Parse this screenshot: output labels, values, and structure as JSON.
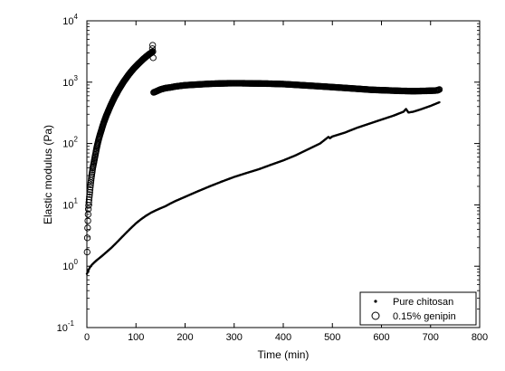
{
  "chart_data": {
    "type": "scatter",
    "xlabel": "Time (min)",
    "ylabel": "Elastic modulus (Pa)",
    "xlim": [
      0,
      800
    ],
    "ylim": [
      0.1,
      10000
    ],
    "yscale": "log",
    "grid": false,
    "legend_position": "bottom-right",
    "x_ticks": [
      {
        "value": 0,
        "label": "0"
      },
      {
        "value": 100,
        "label": "100"
      },
      {
        "value": 200,
        "label": "200"
      },
      {
        "value": 300,
        "label": "300"
      },
      {
        "value": 400,
        "label": "400"
      },
      {
        "value": 500,
        "label": "500"
      },
      {
        "value": 600,
        "label": "600"
      },
      {
        "value": 700,
        "label": "700"
      },
      {
        "value": 800,
        "label": "800"
      }
    ],
    "y_ticks": [
      {
        "value": 0.1,
        "base": "10",
        "exp": "-1"
      },
      {
        "value": 1,
        "base": "10",
        "exp": "0"
      },
      {
        "value": 10,
        "base": "10",
        "exp": "1"
      },
      {
        "value": 100,
        "base": "10",
        "exp": "2"
      },
      {
        "value": 1000,
        "base": "10",
        "exp": "3"
      },
      {
        "value": 10000,
        "base": "10",
        "exp": "4"
      }
    ],
    "series": [
      {
        "name": "Pure chitosan",
        "marker": "dot",
        "color": "#000000",
        "points": [
          [
            0,
            0.75
          ],
          [
            3,
            0.85
          ],
          [
            6,
            0.95
          ],
          [
            10,
            1.05
          ],
          [
            15,
            1.15
          ],
          [
            20,
            1.25
          ],
          [
            30,
            1.45
          ],
          [
            40,
            1.7
          ],
          [
            50,
            2.0
          ],
          [
            60,
            2.4
          ],
          [
            70,
            2.9
          ],
          [
            80,
            3.5
          ],
          [
            90,
            4.2
          ],
          [
            100,
            5.0
          ],
          [
            110,
            5.8
          ],
          [
            120,
            6.6
          ],
          [
            130,
            7.4
          ],
          [
            140,
            8.1
          ],
          [
            150,
            8.8
          ],
          [
            160,
            9.5
          ],
          [
            170,
            10.5
          ],
          [
            180,
            11.5
          ],
          [
            200,
            13.5
          ],
          [
            225,
            16.5
          ],
          [
            250,
            20
          ],
          [
            275,
            24
          ],
          [
            300,
            28.5
          ],
          [
            325,
            33
          ],
          [
            350,
            38
          ],
          [
            375,
            45
          ],
          [
            400,
            53
          ],
          [
            425,
            64
          ],
          [
            450,
            80
          ],
          [
            475,
            100
          ],
          [
            492,
            128
          ],
          [
            495,
            122
          ],
          [
            500,
            130
          ],
          [
            525,
            150
          ],
          [
            550,
            180
          ],
          [
            575,
            210
          ],
          [
            600,
            245
          ],
          [
            625,
            285
          ],
          [
            645,
            330
          ],
          [
            650,
            365
          ],
          [
            655,
            320
          ],
          [
            665,
            330
          ],
          [
            680,
            360
          ],
          [
            700,
            410
          ],
          [
            718,
            470
          ]
        ]
      },
      {
        "name": "0.15% genipin",
        "marker": "open-circle",
        "color": "#000000",
        "points": [
          [
            0.5,
            1.7
          ],
          [
            1.0,
            2.9
          ],
          [
            1.5,
            4.2
          ],
          [
            2,
            5.5
          ],
          [
            2.5,
            7
          ],
          [
            3,
            8.5
          ],
          [
            3.5,
            9.8
          ],
          [
            4,
            11
          ],
          [
            5,
            13.5
          ],
          [
            6,
            16
          ],
          [
            7,
            19.5
          ],
          [
            8,
            23
          ],
          [
            9,
            27
          ],
          [
            10,
            31
          ],
          [
            11,
            35
          ],
          [
            12,
            40
          ],
          [
            14,
            48
          ],
          [
            16,
            58
          ],
          [
            18,
            70
          ],
          [
            20,
            85
          ],
          [
            22,
            100
          ],
          [
            25,
            125
          ],
          [
            28,
            150
          ],
          [
            31,
            180
          ],
          [
            34,
            215
          ],
          [
            37,
            250
          ],
          [
            40,
            290
          ],
          [
            44,
            345
          ],
          [
            48,
            410
          ],
          [
            52,
            480
          ],
          [
            56,
            560
          ],
          [
            60,
            640
          ],
          [
            65,
            760
          ],
          [
            70,
            880
          ],
          [
            75,
            1020
          ],
          [
            80,
            1160
          ],
          [
            85,
            1320
          ],
          [
            90,
            1480
          ],
          [
            95,
            1650
          ],
          [
            100,
            1820
          ],
          [
            105,
            2000
          ],
          [
            110,
            2180
          ],
          [
            115,
            2380
          ],
          [
            120,
            2580
          ],
          [
            125,
            2780
          ],
          [
            128,
            2900
          ],
          [
            131,
            3000
          ],
          [
            133,
            3100
          ],
          [
            134,
            4000
          ],
          [
            135,
            2500
          ],
          [
            136,
            680
          ],
          [
            140,
            700
          ],
          [
            145,
            730
          ],
          [
            150,
            760
          ],
          [
            155,
            780
          ],
          [
            160,
            800
          ],
          [
            170,
            820
          ],
          [
            180,
            850
          ],
          [
            190,
            870
          ],
          [
            200,
            890
          ],
          [
            210,
            900
          ],
          [
            220,
            910
          ],
          [
            230,
            920
          ],
          [
            240,
            930
          ],
          [
            250,
            940
          ],
          [
            260,
            945
          ],
          [
            270,
            950
          ],
          [
            280,
            955
          ],
          [
            290,
            960
          ],
          [
            300,
            960
          ],
          [
            310,
            960
          ],
          [
            320,
            958
          ],
          [
            330,
            955
          ],
          [
            340,
            952
          ],
          [
            350,
            950
          ],
          [
            360,
            948
          ],
          [
            370,
            945
          ],
          [
            380,
            940
          ],
          [
            390,
            935
          ],
          [
            400,
            930
          ],
          [
            410,
            920
          ],
          [
            420,
            910
          ],
          [
            430,
            900
          ],
          [
            440,
            890
          ],
          [
            450,
            880
          ],
          [
            460,
            870
          ],
          [
            470,
            860
          ],
          [
            480,
            850
          ],
          [
            490,
            840
          ],
          [
            500,
            830
          ],
          [
            510,
            820
          ],
          [
            520,
            810
          ],
          [
            530,
            800
          ],
          [
            540,
            790
          ],
          [
            550,
            780
          ],
          [
            560,
            770
          ],
          [
            570,
            760
          ],
          [
            580,
            750
          ],
          [
            590,
            745
          ],
          [
            600,
            740
          ],
          [
            610,
            735
          ],
          [
            620,
            730
          ],
          [
            630,
            725
          ],
          [
            640,
            720
          ],
          [
            650,
            718
          ],
          [
            660,
            715
          ],
          [
            670,
            715
          ],
          [
            680,
            718
          ],
          [
            690,
            720
          ],
          [
            700,
            725
          ],
          [
            710,
            730
          ],
          [
            715,
            740
          ],
          [
            718,
            760
          ]
        ]
      }
    ]
  }
}
